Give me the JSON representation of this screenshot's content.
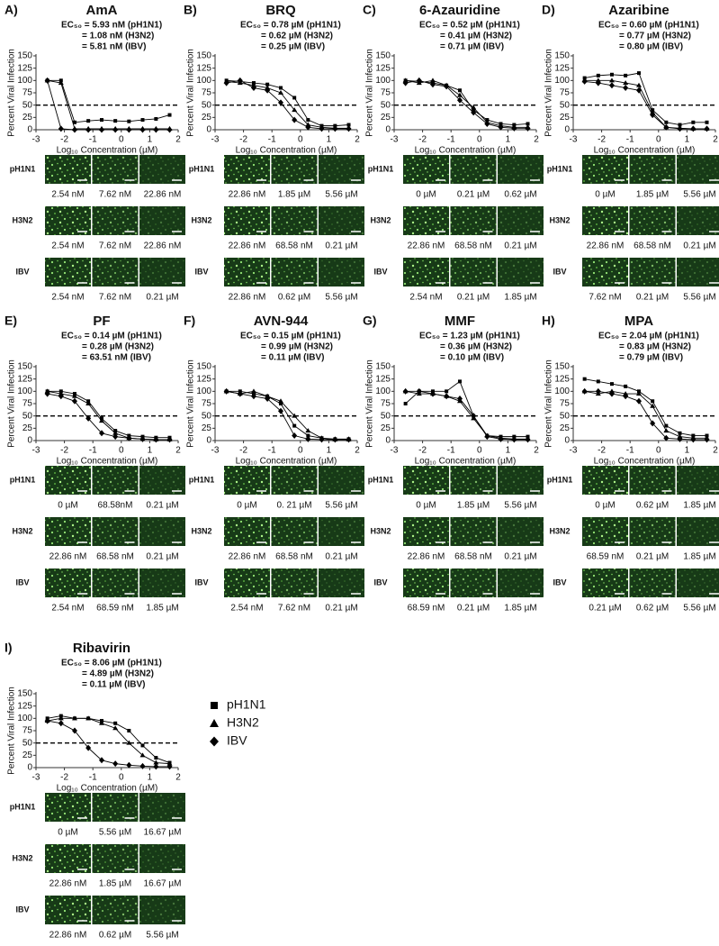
{
  "chart_data": [
    {
      "type": "line",
      "label": "A)",
      "title": "AmA",
      "annotations": [
        "EC₅₀ = 5.93 nM (pH1N1)",
        "= 1.08 nM (H3N2)",
        "= 5.81 nM (IBV)"
      ],
      "x_label": "Log₁₀ Concentration (µM)",
      "y_label": "Percent Viral Infection",
      "x": [
        -2.6,
        -2.12,
        -1.64,
        -1.16,
        -0.69,
        -0.21,
        0.27,
        0.75,
        1.22,
        1.7
      ],
      "xlim": [
        -3,
        2
      ],
      "xticks": [
        -3,
        -2,
        -1,
        0,
        1,
        2
      ],
      "ylim": [
        0,
        150
      ],
      "yticks": [
        0,
        25,
        50,
        75,
        100,
        125,
        150
      ],
      "hline": 50,
      "series": [
        {
          "name": "pH1N1",
          "color": "#000000",
          "marker": "square",
          "values": [
            100,
            100,
            15,
            18,
            20,
            18,
            17,
            20,
            22,
            30
          ]
        },
        {
          "name": "H3N2",
          "color": "#000000",
          "marker": "triangle",
          "values": [
            100,
            95,
            2,
            2,
            2,
            2,
            2,
            2,
            2,
            2
          ]
        },
        {
          "name": "IBV",
          "color": "#000000",
          "marker": "diamond",
          "values": [
            100,
            2,
            0,
            0,
            0,
            0,
            0,
            0,
            0,
            0
          ]
        }
      ],
      "images": {
        "rows": [
          "pH1N1",
          "H3N2",
          "IBV"
        ],
        "captions": [
          [
            "2.54 nM",
            "7.62 nM",
            "22.86 nM"
          ],
          [
            "2.54 nM",
            "7.62 nM",
            "22.86 nM"
          ],
          [
            "2.54 nM",
            "7.62 nM",
            "0.21 µM"
          ]
        ]
      }
    },
    {
      "type": "line",
      "label": "B)",
      "title": "BRQ",
      "annotations": [
        "EC₅₀ = 0.78 µM (pH1N1)",
        "= 0.62 µM (H3N2)",
        "= 0.25 µM (IBV)"
      ],
      "x_label": "Log₁₀ Concentration (µM)",
      "y_label": "Percent Viral Infection",
      "x": [
        -2.6,
        -2.12,
        -1.64,
        -1.16,
        -0.69,
        -0.21,
        0.27,
        0.75,
        1.22,
        1.7
      ],
      "xlim": [
        -3,
        2
      ],
      "xticks": [
        -3,
        -2,
        -1,
        0,
        1,
        2
      ],
      "ylim": [
        0,
        150
      ],
      "yticks": [
        0,
        25,
        50,
        75,
        100,
        125,
        150
      ],
      "hline": 50,
      "series": [
        {
          "name": "pH1N1",
          "color": "#000000",
          "marker": "square",
          "values": [
            100,
            98,
            95,
            92,
            85,
            65,
            20,
            8,
            8,
            10
          ]
        },
        {
          "name": "H3N2",
          "color": "#000000",
          "marker": "triangle",
          "values": [
            98,
            95,
            90,
            85,
            75,
            40,
            10,
            5,
            3,
            3
          ]
        },
        {
          "name": "IBV",
          "color": "#000000",
          "marker": "diamond",
          "values": [
            95,
            100,
            85,
            80,
            55,
            20,
            5,
            2,
            2,
            2
          ]
        }
      ],
      "images": {
        "rows": [
          "pH1N1",
          "H3N2",
          "IBV"
        ],
        "captions": [
          [
            "22.86 nM",
            "1.85 µM",
            "5.56 µM"
          ],
          [
            "22.86 nM",
            "68.58 nM",
            "0.21 µM"
          ],
          [
            "22.86 nM",
            "0.62 µM",
            "5.56 µM"
          ]
        ]
      }
    },
    {
      "type": "line",
      "label": "C)",
      "title": "6-Azauridine",
      "annotations": [
        "EC₅₀ = 0.52 µM (pH1N1)",
        "= 0.41 µM (H3N2)",
        "= 0.71 µM (IBV)"
      ],
      "x_label": "Log₁₀ Concentration (µM)",
      "y_label": "Percent Viral Infection",
      "x": [
        -2.6,
        -2.12,
        -1.64,
        -1.16,
        -0.69,
        -0.21,
        0.27,
        0.75,
        1.22,
        1.7
      ],
      "xlim": [
        -3,
        2
      ],
      "xticks": [
        -3,
        -2,
        -1,
        0,
        1,
        2
      ],
      "ylim": [
        0,
        150
      ],
      "yticks": [
        0,
        25,
        50,
        75,
        100,
        125,
        150
      ],
      "hline": 50,
      "series": [
        {
          "name": "pH1N1",
          "color": "#000000",
          "marker": "square",
          "values": [
            100,
            98,
            95,
            90,
            80,
            40,
            20,
            12,
            10,
            12
          ]
        },
        {
          "name": "H3N2",
          "color": "#000000",
          "marker": "triangle",
          "values": [
            100,
            95,
            100,
            90,
            70,
            45,
            15,
            8,
            5,
            5
          ]
        },
        {
          "name": "IBV",
          "color": "#000000",
          "marker": "diamond",
          "values": [
            95,
            100,
            92,
            88,
            60,
            35,
            12,
            5,
            3,
            3
          ]
        }
      ],
      "images": {
        "rows": [
          "pH1N1",
          "H3N2",
          "IBV"
        ],
        "captions": [
          [
            "0 µM",
            "0.21 µM",
            "0.62 µM"
          ],
          [
            "22.86 nM",
            "68.58 nM",
            "0.21 µM"
          ],
          [
            "2.54 nM",
            "0.21 µM",
            "1.85 µM"
          ]
        ]
      }
    },
    {
      "type": "line",
      "label": "D)",
      "title": "Azaribine",
      "annotations": [
        "EC₅₀ = 0.60 µM (pH1N1)",
        "= 0.77 µM (H3N2)",
        "= 0.80 µM (IBV)"
      ],
      "x_label": "Log₁₀ Concentration (µM)",
      "y_label": "Percent Viral Infection",
      "x": [
        -2.6,
        -2.12,
        -1.64,
        -1.16,
        -0.69,
        -0.21,
        0.27,
        0.75,
        1.22,
        1.7
      ],
      "xlim": [
        -3,
        2
      ],
      "xticks": [
        -3,
        -2,
        -1,
        0,
        1,
        2
      ],
      "ylim": [
        0,
        150
      ],
      "yticks": [
        0,
        25,
        50,
        75,
        100,
        125,
        150
      ],
      "hline": 50,
      "series": [
        {
          "name": "pH1N1",
          "color": "#000000",
          "marker": "square",
          "values": [
            105,
            110,
            112,
            110,
            115,
            40,
            15,
            10,
            15,
            15
          ]
        },
        {
          "name": "H3N2",
          "color": "#000000",
          "marker": "triangle",
          "values": [
            100,
            100,
            100,
            95,
            90,
            35,
            5,
            3,
            2,
            2
          ]
        },
        {
          "name": "IBV",
          "color": "#000000",
          "marker": "diamond",
          "values": [
            98,
            95,
            90,
            85,
            80,
            30,
            5,
            2,
            2,
            2
          ]
        }
      ],
      "images": {
        "rows": [
          "pH1N1",
          "H3N2",
          "IBV"
        ],
        "captions": [
          [
            "0 µM",
            "1.85 µM",
            "5.56 µM"
          ],
          [
            "22.86 nM",
            "68.58 nM",
            "0.21 µM"
          ],
          [
            "7.62 nM",
            "0.21 µM",
            "5.56 µM"
          ]
        ]
      }
    },
    {
      "type": "line",
      "label": "E)",
      "title": "PF",
      "annotations": [
        "EC₅₀ = 0.14 µM (pH1N1)",
        "= 0.28 µM (H3N2)",
        "= 63.51 nM (IBV)"
      ],
      "x_label": "Log₁₀ Concentration (µM)",
      "y_label": "Percent Viral Infection",
      "x": [
        -2.6,
        -2.12,
        -1.64,
        -1.16,
        -0.69,
        -0.21,
        0.27,
        0.75,
        1.22,
        1.7
      ],
      "xlim": [
        -3,
        2
      ],
      "xticks": [
        -3,
        -2,
        -1,
        0,
        1,
        2
      ],
      "ylim": [
        0,
        150
      ],
      "yticks": [
        0,
        25,
        50,
        75,
        100,
        125,
        150
      ],
      "hline": 50,
      "series": [
        {
          "name": "pH1N1",
          "color": "#000000",
          "marker": "square",
          "values": [
            100,
            100,
            95,
            80,
            45,
            20,
            10,
            8,
            6,
            6
          ]
        },
        {
          "name": "H3N2",
          "color": "#000000",
          "marker": "triangle",
          "values": [
            100,
            95,
            90,
            75,
            40,
            15,
            5,
            3,
            2,
            2
          ]
        },
        {
          "name": "IBV",
          "color": "#000000",
          "marker": "diamond",
          "values": [
            95,
            90,
            80,
            45,
            15,
            8,
            5,
            3,
            2,
            2
          ]
        }
      ],
      "images": {
        "rows": [
          "pH1N1",
          "H3N2",
          "IBV"
        ],
        "captions": [
          [
            "0 µM",
            "68.58nM",
            "0.21 µM"
          ],
          [
            "22.86 nM",
            "68.58 nM",
            "0.21 µM"
          ],
          [
            "2.54 nM",
            "68.59 nM",
            "1.85 µM"
          ]
        ]
      }
    },
    {
      "type": "line",
      "label": "F)",
      "title": "AVN-944",
      "annotations": [
        "EC₅₀ = 0.15 µM (pH1N1)",
        "= 0.99 µM (H3N2)",
        "= 0.11 µM (IBV)"
      ],
      "x_label": "Log₁₀ Concentration (µM)",
      "y_label": "Percent Viral Infection",
      "x": [
        -2.6,
        -2.12,
        -1.64,
        -1.16,
        -0.69,
        -0.21,
        0.27,
        0.75,
        1.22,
        1.7
      ],
      "xlim": [
        -3,
        2
      ],
      "xticks": [
        -3,
        -2,
        -1,
        0,
        1,
        2
      ],
      "ylim": [
        0,
        150
      ],
      "yticks": [
        0,
        25,
        50,
        75,
        100,
        125,
        150
      ],
      "hline": 50,
      "series": [
        {
          "name": "pH1N1",
          "color": "#000000",
          "marker": "square",
          "values": [
            100,
            100,
            95,
            90,
            75,
            30,
            10,
            5,
            3,
            3
          ]
        },
        {
          "name": "H3N2",
          "color": "#000000",
          "marker": "triangle",
          "values": [
            100,
            95,
            100,
            90,
            80,
            50,
            20,
            5,
            2,
            2
          ]
        },
        {
          "name": "IBV",
          "color": "#000000",
          "marker": "diamond",
          "values": [
            100,
            95,
            90,
            85,
            60,
            10,
            3,
            2,
            2,
            2
          ]
        }
      ],
      "images": {
        "rows": [
          "pH1N1",
          "H3N2",
          "IBV"
        ],
        "captions": [
          [
            "0 µM",
            "0. 21 µM",
            "5.56 µM"
          ],
          [
            "22.86 nM",
            "68.58 nM",
            "0.21 µM"
          ],
          [
            "2.54 nM",
            "7.62 nM",
            "0.21 µM"
          ]
        ]
      }
    },
    {
      "type": "line",
      "label": "G)",
      "title": "MMF",
      "annotations": [
        "EC₅₀ = 1.23 µM (pH1N1)",
        "= 0.36 µM (H3N2)",
        "= 0.10 µM (IBV)"
      ],
      "x_label": "Log₁₀ Concentration (µM)",
      "y_label": "Percent Viral Infection",
      "x": [
        -2.6,
        -2.12,
        -1.64,
        -1.16,
        -0.69,
        -0.21,
        0.27,
        0.75,
        1.22,
        1.7
      ],
      "xlim": [
        -3,
        2
      ],
      "xticks": [
        -3,
        -2,
        -1,
        0,
        1,
        2
      ],
      "ylim": [
        0,
        150
      ],
      "yticks": [
        0,
        25,
        50,
        75,
        100,
        125,
        150
      ],
      "hline": 50,
      "series": [
        {
          "name": "pH1N1",
          "color": "#000000",
          "marker": "square",
          "values": [
            75,
            100,
            100,
            100,
            120,
            50,
            10,
            8,
            8,
            8
          ]
        },
        {
          "name": "H3N2",
          "color": "#000000",
          "marker": "triangle",
          "values": [
            100,
            95,
            95,
            90,
            80,
            45,
            10,
            5,
            3,
            3
          ]
        },
        {
          "name": "IBV",
          "color": "#000000",
          "marker": "diamond",
          "values": [
            100,
            100,
            95,
            90,
            85,
            50,
            8,
            3,
            2,
            2
          ]
        }
      ],
      "images": {
        "rows": [
          "pH1N1",
          "H3N2",
          "IBV"
        ],
        "captions": [
          [
            "0 µM",
            "1.85 µM",
            "5.56 µM"
          ],
          [
            "22.86 nM",
            "68.58 nM",
            "0.21 µM"
          ],
          [
            "68.59 nM",
            "0.21 µM",
            "1.85 µM"
          ]
        ]
      }
    },
    {
      "type": "line",
      "label": "H)",
      "title": "MPA",
      "annotations": [
        "EC₅₀ = 2.04 µM (pH1N1)",
        "= 0.83 µM (H3N2)",
        "= 0.79 µM (IBV)"
      ],
      "x_label": "Log₁₀ Concentration (µM)",
      "y_label": "Percent Viral Infection",
      "x": [
        -2.6,
        -2.12,
        -1.64,
        -1.16,
        -0.69,
        -0.21,
        0.27,
        0.75,
        1.22,
        1.7
      ],
      "xlim": [
        -3,
        2
      ],
      "xticks": [
        -3,
        -2,
        -1,
        0,
        1,
        2
      ],
      "ylim": [
        0,
        150
      ],
      "yticks": [
        0,
        25,
        50,
        75,
        100,
        125,
        150
      ],
      "hline": 50,
      "series": [
        {
          "name": "pH1N1",
          "color": "#000000",
          "marker": "square",
          "values": [
            125,
            120,
            115,
            110,
            100,
            80,
            30,
            15,
            10,
            10
          ]
        },
        {
          "name": "H3N2",
          "color": "#000000",
          "marker": "triangle",
          "values": [
            100,
            95,
            100,
            95,
            95,
            70,
            20,
            8,
            5,
            5
          ]
        },
        {
          "name": "IBV",
          "color": "#000000",
          "marker": "diamond",
          "values": [
            100,
            100,
            95,
            90,
            80,
            35,
            5,
            3,
            2,
            2
          ]
        }
      ],
      "images": {
        "rows": [
          "pH1N1",
          "H3N2",
          "IBV"
        ],
        "captions": [
          [
            "0 µM",
            "0.62 µM",
            "1.85 µM"
          ],
          [
            "68.59 nM",
            "0.21 µM",
            "1.85 µM"
          ],
          [
            "0.21 µM",
            "0.62 µM",
            "5.56 µM"
          ]
        ]
      }
    },
    {
      "type": "line",
      "label": "I)",
      "title": "Ribavirin",
      "annotations": [
        "EC₅₀ = 8.06 µM (pH1N1)",
        "= 4.89 µM (H3N2)",
        "= 0.11 µM (IBV)"
      ],
      "x_label": "Log₁₀ Concentration (µM)",
      "y_label": "Percent Viral Infection",
      "x": [
        -2.6,
        -2.12,
        -1.64,
        -1.16,
        -0.69,
        -0.21,
        0.27,
        0.75,
        1.22,
        1.7
      ],
      "xlim": [
        -3,
        2
      ],
      "xticks": [
        -3,
        -2,
        -1,
        0,
        1,
        2
      ],
      "ylim": [
        0,
        150
      ],
      "yticks": [
        0,
        25,
        50,
        75,
        100,
        125,
        150
      ],
      "hline": 50,
      "legend": "right",
      "series": [
        {
          "name": "pH1N1",
          "color": "#000000",
          "marker": "square",
          "values": [
            100,
            105,
            100,
            100,
            95,
            90,
            75,
            45,
            20,
            10
          ]
        },
        {
          "name": "H3N2",
          "color": "#000000",
          "marker": "triangle",
          "values": [
            95,
            100,
            100,
            100,
            90,
            80,
            50,
            25,
            10,
            8
          ]
        },
        {
          "name": "IBV",
          "color": "#000000",
          "marker": "diamond",
          "values": [
            95,
            90,
            75,
            40,
            15,
            8,
            5,
            3,
            2,
            2
          ]
        }
      ],
      "images": {
        "rows": [
          "pH1N1",
          "H3N2",
          "IBV"
        ],
        "captions": [
          [
            "0 µM",
            "5.56 µM",
            "16.67 µM"
          ],
          [
            "22.86 nM",
            "1.85 µM",
            "16.67 µM"
          ],
          [
            "22.86 nM",
            "0.62 µM",
            "5.56 µM"
          ]
        ]
      }
    }
  ]
}
